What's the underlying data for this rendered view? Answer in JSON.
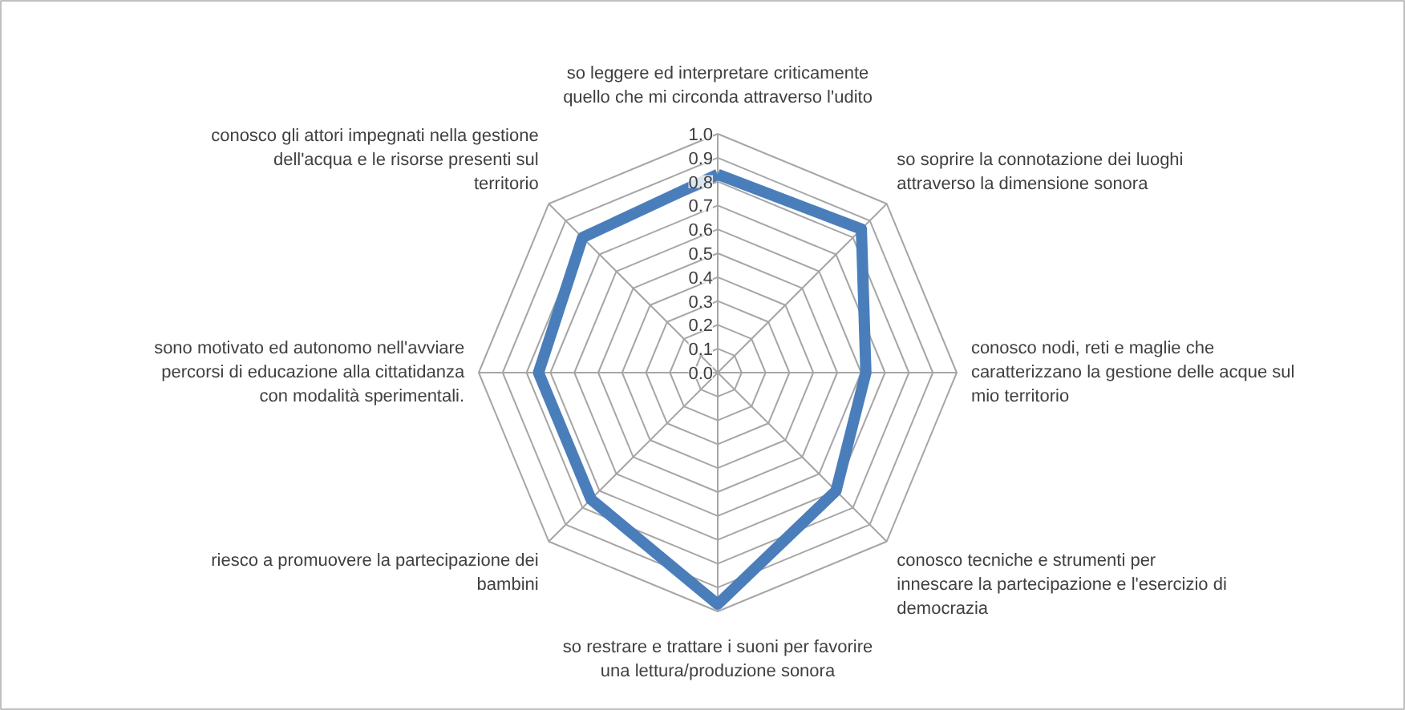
{
  "chart_data": {
    "type": "radar",
    "categories": [
      "so leggere ed interpretare criticamente\nquello che mi circonda attraverso l'udito",
      "so soprire la connotazione dei luoghi\nattraverso la dimensione sonora",
      "conosco nodi, reti e maglie che\ncaratterizzano la gestione delle acque sul\nmio territorio",
      "conosco tecniche e strumenti per\ninnescare la partecipazione e l'esercizio di\ndemocrazia",
      "so restrare e trattare i suoni per favorire\nuna lettura/produzione sonora",
      "riesco a promuovere la partecipazione dei\nbambini",
      "sono motivato ed autonomo nell'avviare\npercorsi di educazione alla cittatidanza\ncon modalità sperimentali.",
      "conosco gli attori impegnati nella gestione\ndell'acqua e le risorse presenti sul\nterritorio"
    ],
    "series": [
      {
        "color": "#4a7ebb",
        "values": [
          0.83,
          0.85,
          0.62,
          0.7,
          0.97,
          0.75,
          0.75,
          0.8
        ]
      }
    ],
    "ylim": [
      0,
      1
    ],
    "yticks": [
      {
        "value": 0,
        "label": "0.0"
      },
      {
        "value": 0.1,
        "label": "0.1"
      },
      {
        "value": 0.2,
        "label": "0.2"
      },
      {
        "value": 0.3,
        "label": "0.3"
      },
      {
        "value": 0.4,
        "label": "0.4"
      },
      {
        "value": 0.5,
        "label": "0.5"
      },
      {
        "value": 0.6,
        "label": "0.6"
      },
      {
        "value": 0.7,
        "label": "0.7"
      },
      {
        "value": 0.8,
        "label": "0.8"
      },
      {
        "value": 0.9,
        "label": "0.9"
      },
      {
        "value": 1,
        "label": "1.0"
      }
    ],
    "grid": true
  }
}
